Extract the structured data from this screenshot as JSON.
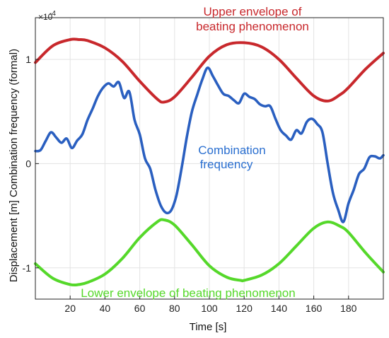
{
  "chart_data": {
    "type": "line",
    "xlabel": "Time [s]",
    "ylabel": "Displacement [m] Combination frequency (formal)",
    "y_exponent_label": "×10",
    "y_exponent_power": "-4",
    "xlim": [
      0,
      200
    ],
    "ylim": [
      -1.3,
      1.4
    ],
    "x_ticks": [
      20,
      40,
      60,
      80,
      100,
      120,
      140,
      160,
      180
    ],
    "y_ticks": [
      -1,
      0,
      1
    ],
    "y_tick_labels": [
      "-1",
      "0",
      "1"
    ],
    "grid": true,
    "annotations": [
      {
        "text": "Upper envelope of",
        "color": "#c8282c"
      },
      {
        "text": "beating phenomenon",
        "color": "#c8282c"
      },
      {
        "text": "Combination",
        "color": "#2a6fd0"
      },
      {
        "text": "frequency",
        "color": "#2a6fd0"
      },
      {
        "text": "Lower envelope of beating phenomenon",
        "color": "#55d82a"
      }
    ],
    "series": [
      {
        "color": "#c8282c",
        "x": [
          0,
          10,
          20,
          25,
          30,
          40,
          50,
          60,
          70,
          74,
          80,
          90,
          100,
          110,
          120,
          130,
          140,
          150,
          160,
          168,
          175,
          180,
          190,
          200
        ],
        "y": [
          0.97,
          1.13,
          1.19,
          1.19,
          1.18,
          1.11,
          0.98,
          0.79,
          0.62,
          0.59,
          0.64,
          0.83,
          1.03,
          1.14,
          1.16,
          1.12,
          1.0,
          0.82,
          0.65,
          0.6,
          0.66,
          0.73,
          0.91,
          1.06
        ]
      },
      {
        "color": "#2a5fc0",
        "x": [
          0,
          3,
          6,
          9,
          12,
          15,
          18,
          21,
          24,
          27,
          30,
          33,
          36,
          39,
          42,
          45,
          48,
          51,
          54,
          57,
          60,
          63,
          66,
          69,
          72,
          75,
          78,
          81,
          84,
          87,
          90,
          93,
          96,
          99,
          102,
          105,
          108,
          111,
          114,
          117,
          120,
          123,
          126,
          129,
          132,
          135,
          138,
          141,
          144,
          147,
          150,
          153,
          156,
          159,
          162,
          165,
          168,
          171,
          174,
          177,
          180,
          183,
          186,
          189,
          192,
          195,
          198,
          200
        ],
        "y": [
          0.12,
          0.13,
          0.22,
          0.3,
          0.25,
          0.2,
          0.24,
          0.15,
          0.22,
          0.28,
          0.42,
          0.53,
          0.65,
          0.73,
          0.77,
          0.74,
          0.78,
          0.63,
          0.69,
          0.42,
          0.28,
          0.05,
          -0.05,
          -0.25,
          -0.4,
          -0.47,
          -0.45,
          -0.31,
          -0.05,
          0.25,
          0.5,
          0.66,
          0.81,
          0.92,
          0.84,
          0.75,
          0.67,
          0.65,
          0.61,
          0.58,
          0.67,
          0.64,
          0.62,
          0.57,
          0.55,
          0.55,
          0.43,
          0.32,
          0.27,
          0.23,
          0.32,
          0.29,
          0.4,
          0.43,
          0.38,
          0.3,
          0.0,
          -0.28,
          -0.44,
          -0.56,
          -0.38,
          -0.25,
          -0.1,
          -0.05,
          0.06,
          0.07,
          0.05,
          0.08
        ]
      },
      {
        "color": "#55d82a",
        "x": [
          0,
          10,
          20,
          25,
          30,
          40,
          50,
          60,
          70,
          74,
          80,
          90,
          100,
          110,
          118,
          120,
          130,
          140,
          150,
          160,
          168,
          175,
          180,
          190,
          200
        ],
        "y": [
          -0.96,
          -1.1,
          -1.16,
          -1.16,
          -1.14,
          -1.06,
          -0.91,
          -0.71,
          -0.56,
          -0.54,
          -0.59,
          -0.78,
          -0.98,
          -1.09,
          -1.12,
          -1.12,
          -1.07,
          -0.96,
          -0.79,
          -0.62,
          -0.56,
          -0.6,
          -0.66,
          -0.86,
          -1.04
        ]
      }
    ]
  }
}
